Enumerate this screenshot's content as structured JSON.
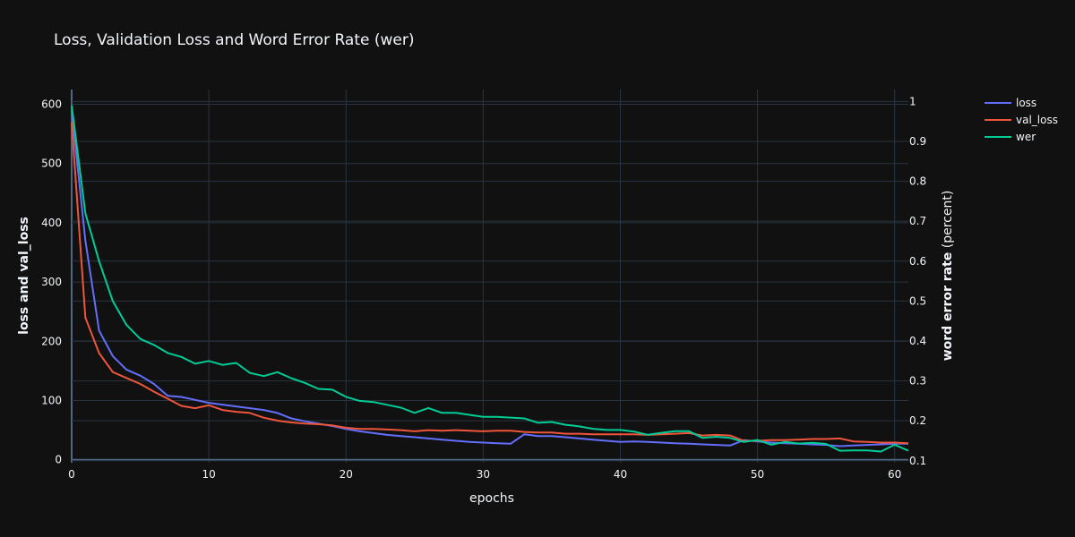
{
  "chart_data": {
    "type": "line",
    "title": "Loss, Validation Loss and Word Error Rate (wer)",
    "xlabel": "epochs",
    "ylabel": "loss and val_loss",
    "y2label_bold": "word error rate",
    "y2label_rest": " (percent)",
    "xlim": [
      0,
      61
    ],
    "ylim": [
      -5,
      625
    ],
    "y2lim": [
      0.095,
      1.03
    ],
    "xticks": [
      "0",
      "10",
      "20",
      "30",
      "40",
      "50",
      "60"
    ],
    "yticks": [
      "0",
      "100",
      "200",
      "300",
      "400",
      "500",
      "600"
    ],
    "y2ticks": [
      "0.1",
      "0.2",
      "0.3",
      "0.4",
      "0.5",
      "0.6",
      "0.7",
      "0.8",
      "0.9",
      "1"
    ],
    "grid": true,
    "legend_position": "top-right",
    "series": [
      {
        "name": "loss",
        "axis": "y",
        "color": "#636efa",
        "x": [
          0,
          1,
          2,
          3,
          4,
          5,
          6,
          7,
          8,
          9,
          10,
          11,
          12,
          13,
          14,
          15,
          16,
          17,
          18,
          19,
          20,
          21,
          22,
          23,
          24,
          25,
          26,
          27,
          28,
          29,
          30,
          31,
          32,
          33,
          34,
          35,
          36,
          37,
          38,
          39,
          40,
          41,
          42,
          43,
          44,
          45,
          46,
          47,
          48,
          49,
          50,
          51,
          52,
          53,
          54,
          55,
          56,
          57,
          58,
          59,
          60,
          61
        ],
        "values": [
          590,
          370,
          218,
          175,
          152,
          142,
          128,
          108,
          106,
          101,
          96,
          93,
          90,
          87,
          84,
          79,
          70,
          65,
          61,
          57,
          52,
          48,
          45,
          42,
          40,
          38,
          36,
          34,
          32,
          30,
          29,
          28,
          27,
          43,
          40,
          40,
          38,
          36,
          34,
          32,
          30,
          31,
          30,
          29,
          28,
          27,
          26,
          25,
          24,
          33,
          31,
          29,
          28,
          27,
          26,
          25,
          23,
          24,
          25,
          26,
          27,
          27
        ]
      },
      {
        "name": "val_loss",
        "axis": "y",
        "color": "#ef553b",
        "x": [
          0,
          1,
          2,
          3,
          4,
          5,
          6,
          7,
          8,
          9,
          10,
          11,
          12,
          13,
          14,
          15,
          16,
          17,
          18,
          19,
          20,
          21,
          22,
          23,
          24,
          25,
          26,
          27,
          28,
          29,
          30,
          31,
          32,
          33,
          34,
          35,
          36,
          37,
          38,
          39,
          40,
          41,
          42,
          43,
          44,
          45,
          46,
          47,
          48,
          49,
          50,
          51,
          52,
          53,
          54,
          55,
          56,
          57,
          58,
          59,
          60,
          61
        ],
        "values": [
          570,
          240,
          180,
          148,
          138,
          128,
          115,
          103,
          91,
          87,
          92,
          84,
          81,
          79,
          71,
          66,
          63,
          61,
          60,
          58,
          54,
          52,
          52,
          51,
          50,
          48,
          50,
          49,
          50,
          49,
          48,
          49,
          49,
          47,
          46,
          46,
          44,
          44,
          43,
          43,
          43,
          43,
          42,
          43,
          44,
          45,
          41,
          42,
          41,
          32,
          32,
          33,
          33,
          34,
          35,
          35,
          36,
          31,
          30,
          29,
          29,
          28
        ]
      },
      {
        "name": "wer",
        "axis": "y2",
        "color": "#00cc96",
        "x": [
          0,
          1,
          2,
          3,
          4,
          5,
          6,
          7,
          8,
          9,
          10,
          11,
          12,
          13,
          14,
          15,
          16,
          17,
          18,
          19,
          20,
          21,
          22,
          23,
          24,
          25,
          26,
          27,
          28,
          29,
          30,
          31,
          32,
          33,
          34,
          35,
          36,
          37,
          38,
          39,
          40,
          41,
          42,
          43,
          44,
          45,
          46,
          47,
          48,
          49,
          50,
          51,
          52,
          53,
          54,
          55,
          56,
          57,
          58,
          59,
          60,
          61
        ],
        "values": [
          0.99,
          0.72,
          0.6,
          0.5,
          0.44,
          0.405,
          0.39,
          0.37,
          0.36,
          0.343,
          0.35,
          0.34,
          0.345,
          0.32,
          0.312,
          0.322,
          0.307,
          0.295,
          0.28,
          0.278,
          0.26,
          0.25,
          0.247,
          0.24,
          0.233,
          0.22,
          0.232,
          0.22,
          0.22,
          0.215,
          0.21,
          0.21,
          0.208,
          0.206,
          0.195,
          0.197,
          0.19,
          0.186,
          0.18,
          0.177,
          0.177,
          0.173,
          0.165,
          0.17,
          0.174,
          0.174,
          0.157,
          0.16,
          0.157,
          0.147,
          0.152,
          0.14,
          0.147,
          0.143,
          0.145,
          0.142,
          0.125,
          0.126,
          0.126,
          0.123,
          0.14,
          0.125
        ]
      }
    ]
  }
}
